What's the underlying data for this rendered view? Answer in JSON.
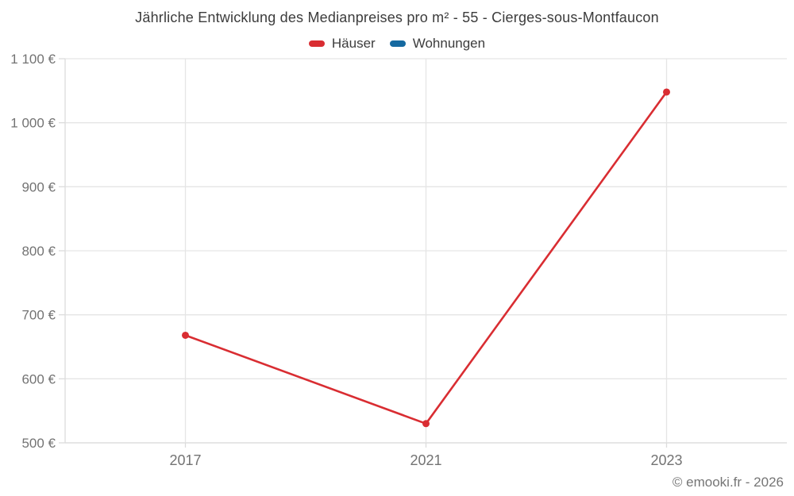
{
  "title": "Jährliche Entwicklung des Medianpreises pro m² - 55 - Cierges-sous-Montfaucon",
  "legend": {
    "items": [
      {
        "label": "Häuser",
        "color": "#d92d32"
      },
      {
        "label": "Wohnungen",
        "color": "#1569a0"
      }
    ]
  },
  "footer": {
    "copyright": "© emooki.fr - 2026"
  },
  "chart_data": {
    "type": "line",
    "title": "Jährliche Entwicklung des Medianpreises pro m² - 55 - Cierges-sous-Montfaucon",
    "categories": [
      "2017",
      "2021",
      "2023"
    ],
    "series": [
      {
        "name": "Häuser",
        "color": "#d92d32",
        "values": [
          668,
          530,
          1048
        ]
      },
      {
        "name": "Wohnungen",
        "color": "#1569a0",
        "values": []
      }
    ],
    "xlabel": "",
    "ylabel": "",
    "ylim": [
      500,
      1100
    ],
    "ytick_step": 100,
    "ytick_labels": [
      "500 €",
      "600 €",
      "700 €",
      "800 €",
      "900 €",
      "1 000 €",
      "1 100 €"
    ],
    "currency_suffix": "€",
    "grid": true,
    "legend_position": "top"
  }
}
